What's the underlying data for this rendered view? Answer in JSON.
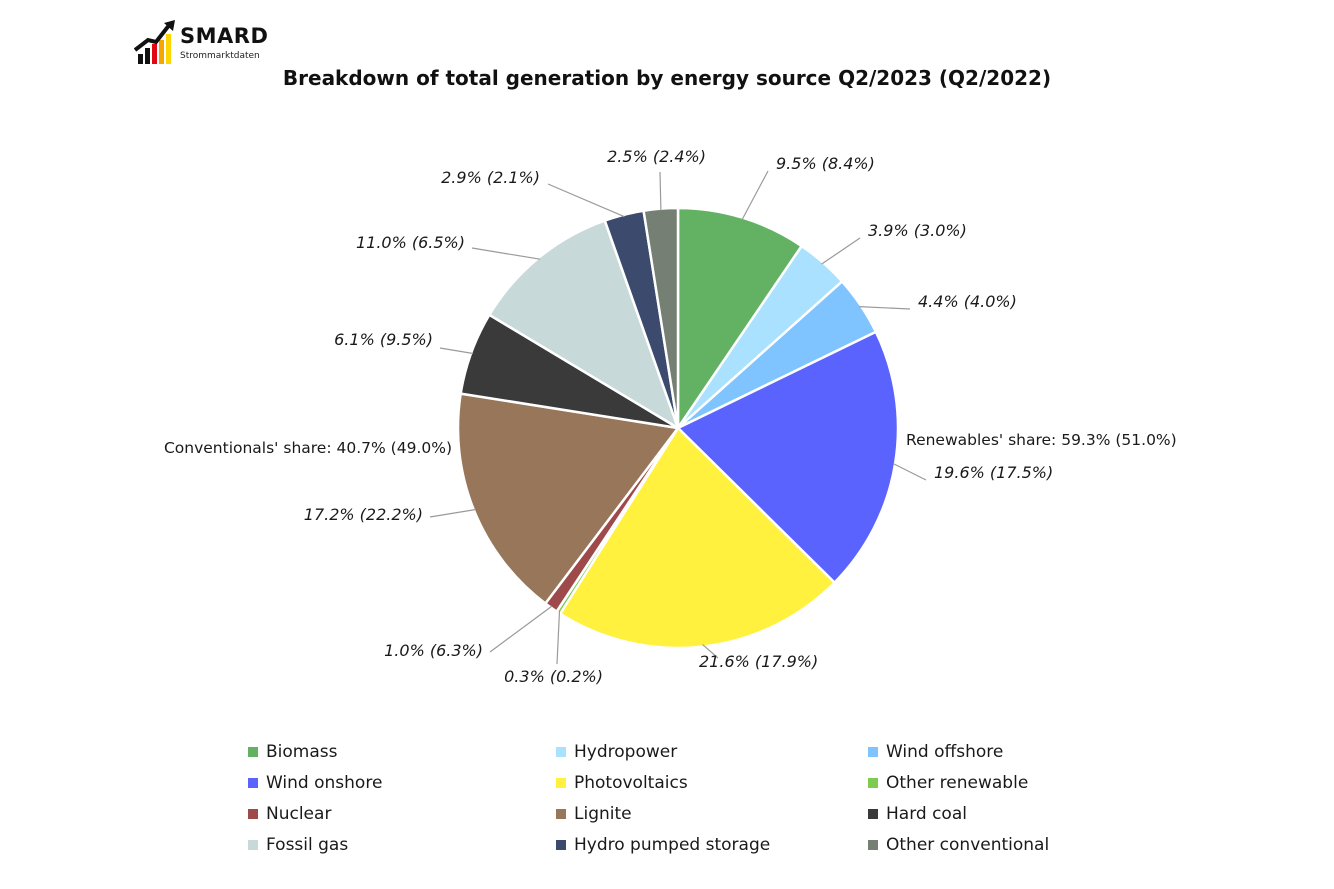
{
  "logo": {
    "wordmark": "SMARD",
    "subtitle": "Strommarktdaten"
  },
  "chart_data": {
    "type": "pie",
    "title": "Breakdown of total generation by energy source Q2/2023 (Q2/2022)",
    "slices": [
      {
        "name": "Biomass",
        "value": 9.5,
        "label": "9.5% (8.4%)",
        "color": "#63B263"
      },
      {
        "name": "Hydropower",
        "value": 3.9,
        "label": "3.9% (3.0%)",
        "color": "#A9E1FF"
      },
      {
        "name": "Wind offshore",
        "value": 4.4,
        "label": "4.4% (4.0%)",
        "color": "#7FC4FF"
      },
      {
        "name": "Wind onshore",
        "value": 19.6,
        "label": "19.6% (17.5%)",
        "color": "#5B63FF"
      },
      {
        "name": "Photovoltaics",
        "value": 21.6,
        "label": "21.6% (17.9%)",
        "color": "#FFF13E"
      },
      {
        "name": "Other renewable",
        "value": 0.3,
        "label": "0.3% (0.2%)",
        "color": "#7DCB4F"
      },
      {
        "name": "Nuclear",
        "value": 1.0,
        "label": "1.0% (6.3%)",
        "color": "#9E4A4A"
      },
      {
        "name": "Lignite",
        "value": 17.2,
        "label": "17.2% (22.2%)",
        "color": "#98765A"
      },
      {
        "name": "Hard coal",
        "value": 6.1,
        "label": "6.1% (9.5%)",
        "color": "#3A3A3A"
      },
      {
        "name": "Fossil gas",
        "value": 11.0,
        "label": "11.0% (6.5%)",
        "color": "#C7DAD9"
      },
      {
        "name": "Hydro pumped storage",
        "value": 2.9,
        "label": "2.9% (2.1%)",
        "color": "#3C4A6E"
      },
      {
        "name": "Other conventional",
        "value": 2.5,
        "label": "2.5% (2.4%)",
        "color": "#757F74"
      }
    ],
    "annotations": {
      "renewables_share": "Renewables' share: 59.3% (51.0%)",
      "conventionals_share": "Conventionals' share: 40.7% (49.0%)"
    },
    "legend": {
      "placement": "bottom",
      "items": [
        "Biomass",
        "Hydropower",
        "Wind offshore",
        "Wind onshore",
        "Photovoltaics",
        "Other renewable",
        "Nuclear",
        "Lignite",
        "Hard coal",
        "Fossil gas",
        "Hydro pumped storage",
        "Other conventional"
      ]
    }
  }
}
